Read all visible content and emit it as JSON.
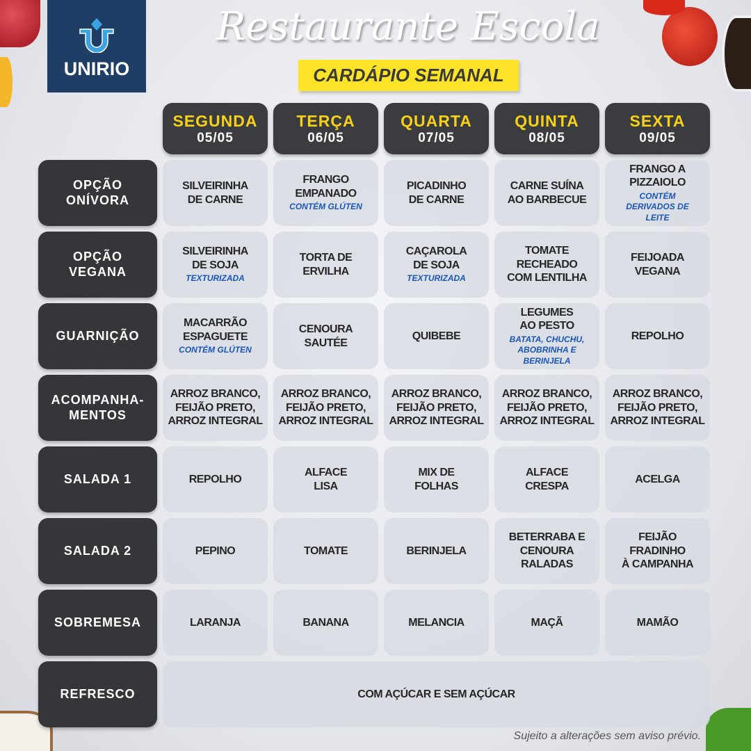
{
  "logo": {
    "text": "UNIRIO"
  },
  "title": "Restaurante Escola",
  "subtitle": "CARDÁPIO SEMANAL",
  "days": [
    {
      "name": "SEGUNDA",
      "date": "05/05"
    },
    {
      "name": "TERÇA",
      "date": "06/05"
    },
    {
      "name": "QUARTA",
      "date": "07/05"
    },
    {
      "name": "QUINTA",
      "date": "08/05"
    },
    {
      "name": "SEXTA",
      "date": "09/05"
    }
  ],
  "rows": [
    {
      "label": "OPÇÃO\nONÍVORA",
      "cells": [
        {
          "text": "SILVEIRINHA\nDE CARNE"
        },
        {
          "text": "FRANGO\nEMPANADO",
          "note": "CONTÉM GLÚTEN"
        },
        {
          "text": "PICADINHO\nDE CARNE"
        },
        {
          "text": "CARNE SUÍNA\nAO BARBECUE"
        },
        {
          "text": "FRANGO A\nPIZZAIOLO",
          "note": "CONTÉM\nDERIVADOS DE\nLEITE"
        }
      ]
    },
    {
      "label": "OPÇÃO\nVEGANA",
      "cells": [
        {
          "text": "SILVEIRINHA\nDE SOJA",
          "note": "TEXTURIZADA"
        },
        {
          "text": "TORTA DE\nERVILHA"
        },
        {
          "text": "CAÇAROLA\nDE SOJA",
          "note": "TEXTURIZADA"
        },
        {
          "text": "TOMATE\nRECHEADO\nCOM LENTILHA"
        },
        {
          "text": "FEIJOADA\nVEGANA"
        }
      ]
    },
    {
      "label": "GUARNIÇÃO",
      "cells": [
        {
          "text": "MACARRÃO\nESPAGUETE",
          "note": "CONTÉM GLÚTEN"
        },
        {
          "text": "CENOURA\nSAUTÉE"
        },
        {
          "text": "QUIBEBE"
        },
        {
          "text": "LEGUMES\nAO PESTO",
          "note": "BATATA, CHUCHU,\nABOBRINHA E\nBERINJELA"
        },
        {
          "text": "REPOLHO"
        }
      ]
    },
    {
      "label": "ACOMPANHA-\nMENTOS",
      "cells": [
        {
          "text": "ARROZ BRANCO,\nFEIJÃO PRETO,\nARROZ INTEGRAL"
        },
        {
          "text": "ARROZ BRANCO,\nFEIJÃO PRETO,\nARROZ INTEGRAL"
        },
        {
          "text": "ARROZ BRANCO,\nFEIJÃO PRETO,\nARROZ INTEGRAL"
        },
        {
          "text": "ARROZ BRANCO,\nFEIJÃO PRETO,\nARROZ INTEGRAL"
        },
        {
          "text": "ARROZ BRANCO,\nFEIJÃO PRETO,\nARROZ INTEGRAL"
        }
      ]
    },
    {
      "label": "SALADA 1",
      "cells": [
        {
          "text": "REPOLHO"
        },
        {
          "text": "ALFACE\nLISA"
        },
        {
          "text": "MIX DE\nFOLHAS"
        },
        {
          "text": "ALFACE\nCRESPA"
        },
        {
          "text": "ACELGA"
        }
      ]
    },
    {
      "label": "SALADA 2",
      "cells": [
        {
          "text": "PEPINO"
        },
        {
          "text": "TOMATE"
        },
        {
          "text": "BERINJELA"
        },
        {
          "text": "BETERRABA E\nCENOURA\nRALADAS"
        },
        {
          "text": "FEIJÃO\nFRADINHO\nÀ CAMPANHA"
        }
      ]
    },
    {
      "label": "SOBREMESA",
      "cells": [
        {
          "text": "LARANJA"
        },
        {
          "text": "BANANA"
        },
        {
          "text": "MELANCIA"
        },
        {
          "text": "MAÇÃ"
        },
        {
          "text": "MAMÃO"
        }
      ]
    }
  ],
  "refresco": {
    "label": "REFRESCO",
    "text": "COM AÇÚCAR E SEM AÇÚCAR"
  },
  "footnote": "Sujeito a alterações sem aviso prévio.",
  "colors": {
    "accent_yellow": "#f7d117",
    "label_dark": "#353639",
    "note_blue": "#1a56b8",
    "logo_blue": "#1f3e66"
  }
}
